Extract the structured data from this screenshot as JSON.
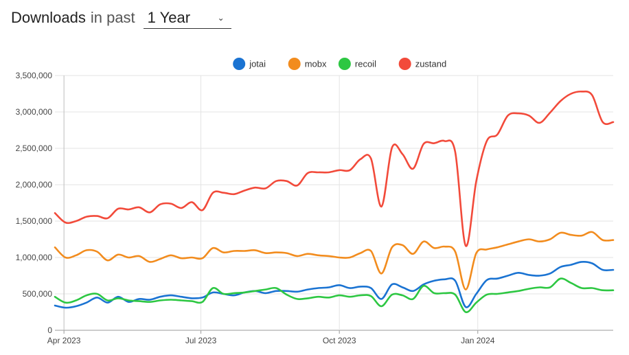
{
  "header": {
    "title": "Downloads",
    "subtitle": "in past",
    "period": {
      "selected": "1 Year"
    }
  },
  "chart_data": {
    "type": "line",
    "title": "",
    "xlabel": "",
    "ylabel": "",
    "xlim": [
      "2023-03-26",
      "2024-03-31"
    ],
    "ylim": [
      0,
      3500000
    ],
    "grid": true,
    "legend_position": "top",
    "y_ticks": [
      {
        "value": 0,
        "label": "0"
      },
      {
        "value": 500000,
        "label": "500,000"
      },
      {
        "value": 1000000,
        "label": "1,000,000"
      },
      {
        "value": 1500000,
        "label": "1,500,000"
      },
      {
        "value": 2000000,
        "label": "2,000,000"
      },
      {
        "value": 2500000,
        "label": "2,500,000"
      },
      {
        "value": 3000000,
        "label": "3,000,000"
      },
      {
        "value": 3500000,
        "label": "3,500,000"
      }
    ],
    "x_ticks": [
      {
        "date": "2023-04-01",
        "label": "Apr 2023"
      },
      {
        "date": "2023-07-01",
        "label": "Jul 2023"
      },
      {
        "date": "2023-10-01",
        "label": "Oct 2023"
      },
      {
        "date": "2024-01-01",
        "label": "Jan 2024"
      }
    ],
    "x": [
      "2023-03-26",
      "2023-04-02",
      "2023-04-09",
      "2023-04-16",
      "2023-04-23",
      "2023-04-30",
      "2023-05-07",
      "2023-05-14",
      "2023-05-21",
      "2023-05-28",
      "2023-06-04",
      "2023-06-11",
      "2023-06-18",
      "2023-06-25",
      "2023-07-02",
      "2023-07-09",
      "2023-07-16",
      "2023-07-23",
      "2023-07-30",
      "2023-08-06",
      "2023-08-13",
      "2023-08-20",
      "2023-08-27",
      "2023-09-03",
      "2023-09-10",
      "2023-09-17",
      "2023-09-24",
      "2023-10-01",
      "2023-10-08",
      "2023-10-15",
      "2023-10-22",
      "2023-10-29",
      "2023-11-05",
      "2023-11-12",
      "2023-11-19",
      "2023-11-26",
      "2023-12-03",
      "2023-12-10",
      "2023-12-17",
      "2023-12-24",
      "2023-12-31",
      "2024-01-07",
      "2024-01-14",
      "2024-01-21",
      "2024-01-28",
      "2024-02-04",
      "2024-02-11",
      "2024-02-18",
      "2024-02-25",
      "2024-03-03",
      "2024-03-10",
      "2024-03-17",
      "2024-03-24",
      "2024-03-31"
    ],
    "series": [
      {
        "name": "jotai",
        "color": "#1a73d2",
        "values": [
          340000,
          310000,
          330000,
          380000,
          450000,
          380000,
          460000,
          390000,
          430000,
          420000,
          460000,
          480000,
          460000,
          440000,
          450000,
          520000,
          500000,
          480000,
          520000,
          540000,
          510000,
          540000,
          540000,
          530000,
          560000,
          580000,
          590000,
          620000,
          580000,
          600000,
          580000,
          430000,
          630000,
          590000,
          540000,
          630000,
          680000,
          700000,
          680000,
          320000,
          500000,
          690000,
          710000,
          750000,
          790000,
          760000,
          750000,
          780000,
          870000,
          900000,
          940000,
          920000,
          830000,
          830000
        ]
      },
      {
        "name": "mobx",
        "color": "#f28c1e",
        "values": [
          1140000,
          1000000,
          1030000,
          1100000,
          1080000,
          960000,
          1040000,
          1000000,
          1020000,
          940000,
          980000,
          1030000,
          990000,
          1000000,
          990000,
          1130000,
          1070000,
          1090000,
          1090000,
          1100000,
          1060000,
          1070000,
          1060000,
          1020000,
          1050000,
          1030000,
          1020000,
          1000000,
          1000000,
          1060000,
          1090000,
          780000,
          1140000,
          1170000,
          1050000,
          1220000,
          1130000,
          1150000,
          1080000,
          560000,
          1060000,
          1110000,
          1140000,
          1180000,
          1220000,
          1250000,
          1220000,
          1250000,
          1340000,
          1310000,
          1300000,
          1350000,
          1240000,
          1240000
        ]
      },
      {
        "name": "recoil",
        "color": "#2dc742",
        "values": [
          460000,
          380000,
          410000,
          480000,
          500000,
          410000,
          440000,
          410000,
          400000,
          390000,
          410000,
          420000,
          410000,
          400000,
          390000,
          580000,
          500000,
          510000,
          520000,
          540000,
          560000,
          580000,
          490000,
          430000,
          440000,
          460000,
          450000,
          480000,
          460000,
          480000,
          470000,
          330000,
          490000,
          480000,
          430000,
          610000,
          510000,
          510000,
          490000,
          250000,
          380000,
          490000,
          500000,
          520000,
          540000,
          570000,
          590000,
          590000,
          710000,
          650000,
          580000,
          580000,
          550000,
          550000
        ]
      },
      {
        "name": "zustand",
        "color": "#f24a3a",
        "values": [
          1610000,
          1480000,
          1500000,
          1560000,
          1570000,
          1540000,
          1670000,
          1660000,
          1690000,
          1620000,
          1730000,
          1740000,
          1680000,
          1760000,
          1650000,
          1890000,
          1890000,
          1870000,
          1920000,
          1960000,
          1950000,
          2050000,
          2050000,
          1990000,
          2160000,
          2170000,
          2170000,
          2200000,
          2200000,
          2350000,
          2360000,
          1700000,
          2510000,
          2420000,
          2220000,
          2560000,
          2570000,
          2600000,
          2450000,
          1160000,
          2050000,
          2600000,
          2690000,
          2950000,
          2980000,
          2950000,
          2850000,
          2990000,
          3150000,
          3250000,
          3280000,
          3230000,
          2860000,
          2860000
        ]
      }
    ]
  }
}
